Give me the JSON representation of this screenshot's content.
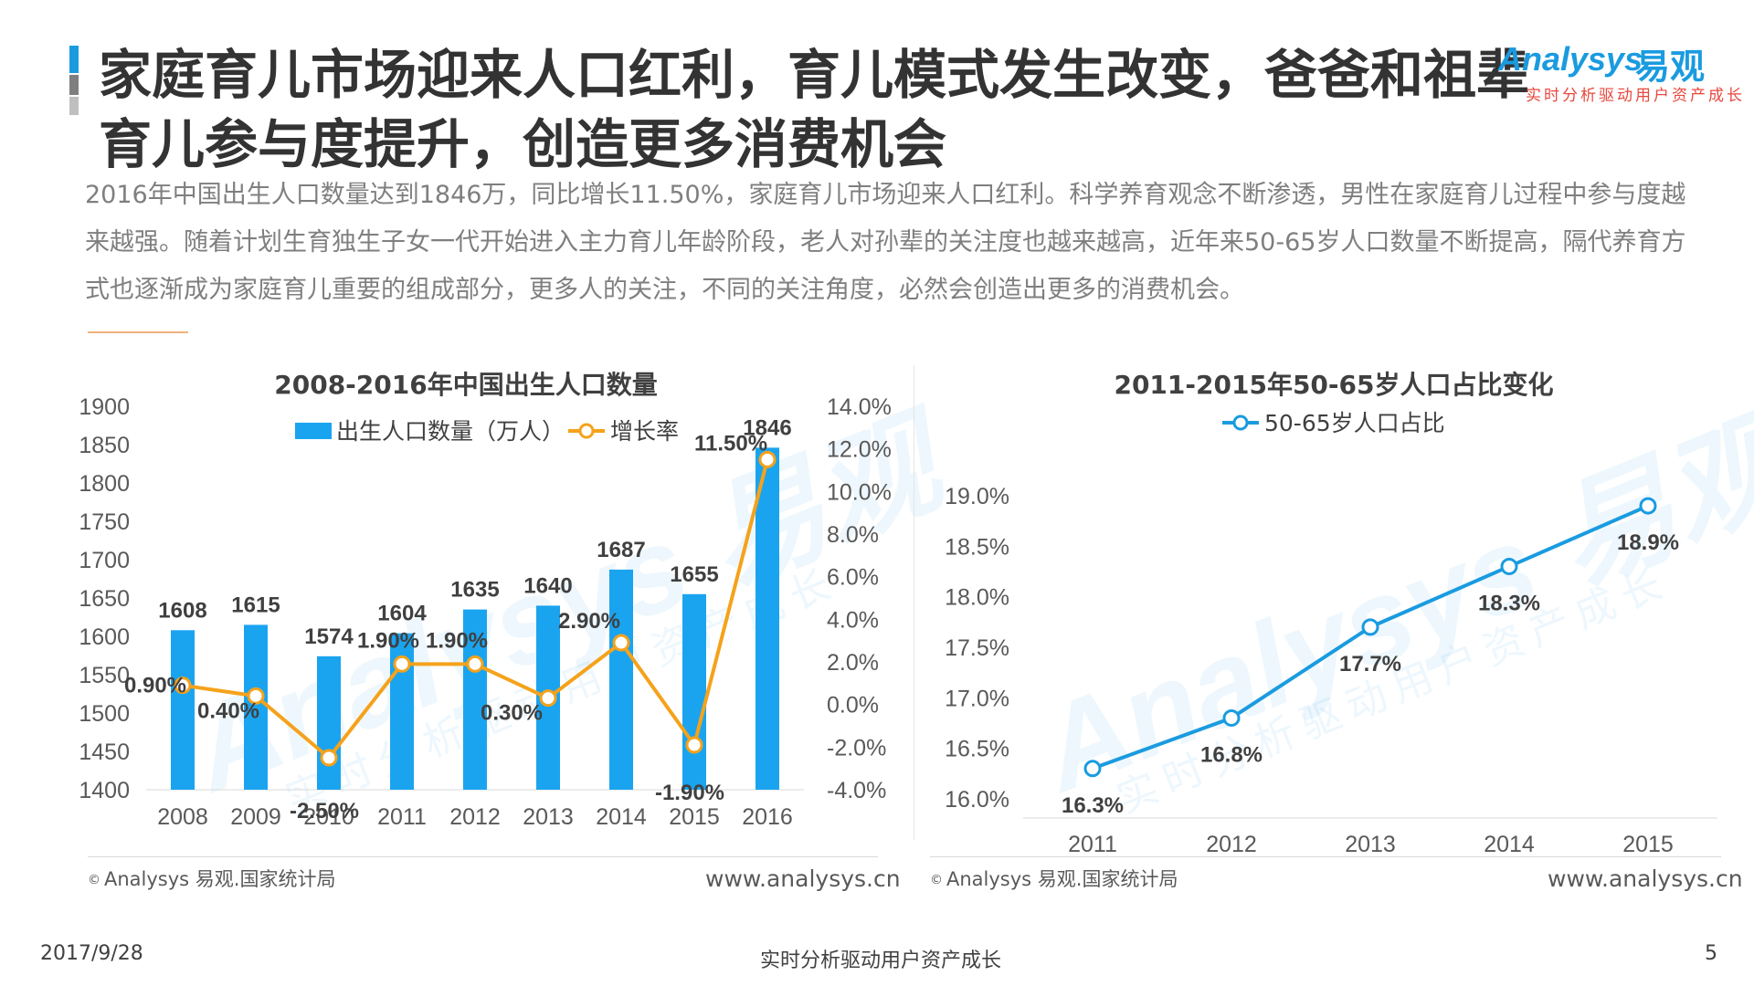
{
  "header": {
    "title_line1": "家庭育儿市场迎来人口红利，育儿模式发生改变，爸爸和祖辈",
    "title_line2": "育儿参与度提升，创造更多消费机会",
    "logo_en": "Analysys",
    "logo_cn": "易观",
    "logo_slogan": "实时分析驱动用户资产成长"
  },
  "intro": "2016年中国出生人口数量达到1846万，同比增长11.50%，家庭育儿市场迎来人口红利。科学养育观念不断渗透，男性在家庭育儿过程中参与度越来越强。随着计划生育独生子女一代开始进入主力育儿年龄阶段，老人对孙辈的关注度也越来越高，近年来50-65岁人口数量不断提高，隔代养育方式也逐渐成为家庭育儿重要的组成部分，更多人的关注，不同的关注角度，必然会创造出更多的消费机会。",
  "watermark": {
    "en": "Analysys 易观",
    "cn": "实时分析驱动用户资产成长"
  },
  "colors": {
    "bar": "#1aa4f0",
    "growth": "#f5a21b",
    "line": "#1a9be0",
    "accent_blue": "#1a9be0",
    "accent_gray": "#7f7f7f"
  },
  "chart_data": [
    {
      "type": "bar",
      "title": "2008-2016年中国出生人口数量",
      "categories": [
        "2008",
        "2009",
        "2010",
        "2011",
        "2012",
        "2013",
        "2014",
        "2015",
        "2016"
      ],
      "series": [
        {
          "name": "出生人口数量（万人）",
          "type": "bar",
          "axis": "left",
          "values": [
            1608,
            1615,
            1574,
            1604,
            1635,
            1640,
            1687,
            1655,
            1846
          ],
          "labels": [
            "1608",
            "1615",
            "1574",
            "1604",
            "1635",
            "1640",
            "1687",
            "1655",
            "1846"
          ]
        },
        {
          "name": "增长率",
          "type": "line",
          "axis": "right",
          "values": [
            0.9,
            0.4,
            -2.5,
            1.9,
            1.9,
            0.3,
            2.9,
            -1.9,
            11.5
          ],
          "labels": [
            "0.90%",
            "0.40%",
            "-2.50%",
            "1.90%",
            "1.90%",
            "0.30%",
            "2.90%",
            "-1.90%",
            "11.50%"
          ]
        }
      ],
      "ylim_left": [
        1400,
        1900
      ],
      "yticks_left": [
        "1900",
        "1850",
        "1800",
        "1750",
        "1700",
        "1650",
        "1600",
        "1550",
        "1500",
        "1450",
        "1400"
      ],
      "ylim_right": [
        -4,
        14
      ],
      "yticks_right": [
        "14.0%",
        "12.0%",
        "10.0%",
        "8.0%",
        "6.0%",
        "4.0%",
        "2.0%",
        "0.0%",
        "-2.0%",
        "-4.0%"
      ],
      "legend": "top",
      "grid": false
    },
    {
      "type": "line",
      "title": "2011-2015年50-65岁人口占比变化",
      "categories": [
        "2011",
        "2012",
        "2013",
        "2014",
        "2015"
      ],
      "series": [
        {
          "name": "50-65岁人口占比",
          "values": [
            16.3,
            16.8,
            17.7,
            18.3,
            18.9
          ],
          "labels": [
            "16.3%",
            "16.8%",
            "17.7%",
            "18.3%",
            "18.9%"
          ]
        }
      ],
      "ylim": [
        16.0,
        19.0
      ],
      "yticks": [
        "19.0%",
        "18.5%",
        "18.0%",
        "17.5%",
        "17.0%",
        "16.5%",
        "16.0%"
      ],
      "legend": "top",
      "grid": false
    }
  ],
  "sources": {
    "left": "Analysys 易观.国家统计局",
    "right": "Analysys 易观.国家统计局",
    "copyright": "©",
    "site_left": "www.analysys.cn",
    "site_right": "www.analysys.cn"
  },
  "footer": {
    "date": "2017/9/28",
    "slogan": "实时分析驱动用户资产成长",
    "page": "5"
  }
}
